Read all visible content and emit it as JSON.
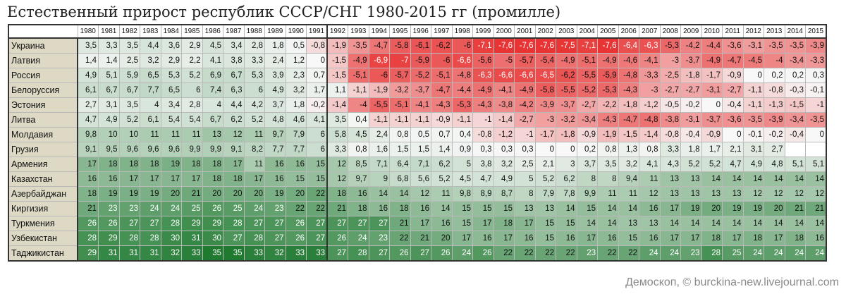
{
  "title": "Естественный прирост республик СССР/СНГ 1980-2015 гг (промилле)",
  "source": "Демоскоп, © burckina-new.livejournal.com",
  "colors": {
    "negative_max": "#e83434",
    "neutral": "#f8f8f8",
    "positive_max": "#1f7a30",
    "row_label_bg": "#ddd9c4"
  },
  "chart_data": {
    "type": "heatmap",
    "title": "Естественный прирост республик СССР/СНГ 1980-2015 гг (промилле)",
    "unit": "промилле",
    "x": [
      "1980",
      "1981",
      "1982",
      "1983",
      "1984",
      "1985",
      "1986",
      "1987",
      "1988",
      "1989",
      "1990",
      "1991",
      "1992",
      "1993",
      "1994",
      "1995",
      "1996",
      "1997",
      "1998",
      "1999",
      "2000",
      "2001",
      "2002",
      "2003",
      "2004",
      "2005",
      "2006",
      "2007",
      "2008",
      "2009",
      "2010",
      "2011",
      "2012",
      "2013",
      "2014",
      "2015"
    ],
    "rows": [
      {
        "name": "Украина",
        "values": [
          "3,5",
          "3,3",
          "3,5",
          "4,4",
          "3,6",
          "2,9",
          "4,5",
          "3,4",
          "2,8",
          "1,8",
          "0,5",
          "-0,8",
          "-1,9",
          "-3,5",
          "-4,7",
          "-5,8",
          "-6,1",
          "-6,2",
          "-6",
          "-7,1",
          "-7,6",
          "-7,6",
          "-7,6",
          "-7,5",
          "-7,1",
          "-7,6",
          "-6,4",
          "-6,3",
          "-5,3",
          "-4,2",
          "-4,4",
          "-3,6",
          "-3,1",
          "-3,5",
          "-3,5",
          "-3,9"
        ]
      },
      {
        "name": "Латвия",
        "values": [
          "1,4",
          "1,4",
          "2,5",
          "3,2",
          "2,9",
          "2,2",
          "4,1",
          "3,8",
          "3,3",
          "2,4",
          "1,2",
          "0",
          "-1,5",
          "-4,9",
          "-6,9",
          "-7",
          "-5,9",
          "-6",
          "-6,6",
          "-5,6",
          "-5",
          "-5,7",
          "-5,4",
          "-4,9",
          "-5,1",
          "-4,9",
          "-4,6",
          "-4,1",
          "-3",
          "-3,7",
          "-4,9",
          "-4,7",
          "-4,5",
          "-4",
          "-3,4",
          "-3,3"
        ]
      },
      {
        "name": "Россия",
        "values": [
          "4,9",
          "5,1",
          "5,9",
          "6,5",
          "5,3",
          "5,2",
          "6,9",
          "6,7",
          "5,3",
          "3,9",
          "2,3",
          "0,7",
          "-1,5",
          "-5,1",
          "-6",
          "-5,7",
          "-5,2",
          "-5,1",
          "-4,8",
          "-6,3",
          "-6,6",
          "-6,6",
          "-6,5",
          "-6,2",
          "-5,5",
          "-5,9",
          "-4,8",
          "-3,3",
          "-2,5",
          "-1,8",
          "-1,7",
          "-0,9",
          "0",
          "0,2",
          "0,2",
          "0,3"
        ]
      },
      {
        "name": "Белоруссия",
        "values": [
          "6,1",
          "6,7",
          "6,7",
          "7,7",
          "6,5",
          "6",
          "7,4",
          "6,3",
          "6",
          "4,9",
          "3,2",
          "1,7",
          "1,1",
          "-1,1",
          "-1,9",
          "-3,2",
          "-3,7",
          "-4,7",
          "-4,4",
          "-4,9",
          "-4,1",
          "-4,9",
          "-5,8",
          "-5,5",
          "-5,2",
          "-5,3",
          "-4,3",
          "-3",
          "-2,7",
          "-2,7",
          "-3,1",
          "-2,7",
          "-1,1",
          "-0,8",
          "-0,3",
          "-0,1"
        ]
      },
      {
        "name": "Эстония",
        "values": [
          "2,7",
          "3,1",
          "3,5",
          "4",
          "3,4",
          "2,8",
          "4",
          "4,4",
          "4,2",
          "3,7",
          "1,8",
          "-0,2",
          "-1,4",
          "-4",
          "-5,5",
          "-5,1",
          "-4,1",
          "-4,3",
          "-5,3",
          "-4,3",
          "-3,8",
          "-4,2",
          "-3,9",
          "-3,7",
          "-2,7",
          "-2,2",
          "-1,8",
          "-1,2",
          "-0,5",
          "-0,2",
          "0",
          "-0,4",
          "-1,1",
          "-1,3",
          "-1,5",
          "-1"
        ]
      },
      {
        "name": "Литва",
        "values": [
          "4,7",
          "4,9",
          "5,2",
          "6,1",
          "5,4",
          "5,4",
          "6,7",
          "6,2",
          "5,2",
          "4,8",
          "4,6",
          "4,1",
          "3,5",
          "0,4",
          "-1,1",
          "-1,1",
          "-1,1",
          "-0,9",
          "-1,1",
          "-1",
          "-1,4",
          "-2,7",
          "-3",
          "-3,2",
          "-3,4",
          "-4,3",
          "-4,7",
          "-4,8",
          "-3,8",
          "-3,1",
          "-3,7",
          "-3,6",
          "-3,5",
          "-3,9",
          "-3,4",
          "-3,5"
        ]
      },
      {
        "name": "Молдавия",
        "values": [
          "9,8",
          "10",
          "10",
          "11",
          "11",
          "11",
          "13",
          "12",
          "11",
          "9,7",
          "7,9",
          "6",
          "5,8",
          "4,5",
          "2,4",
          "0,8",
          "0,5",
          "0,7",
          "0,4",
          "-0,8",
          "-1,2",
          "-1",
          "-1,7",
          "-1,8",
          "-0,9",
          "-1,9",
          "-1,5",
          "-1,4",
          "-0,8",
          "-0,4",
          "-0,9",
          "0",
          "-0,1",
          "-0,2",
          "-0,4",
          "0"
        ]
      },
      {
        "name": "Грузия",
        "values": [
          "9,1",
          "9,5",
          "9,6",
          "9,6",
          "9,6",
          "9,9",
          "9,9",
          "9,1",
          "8,2",
          "7,7",
          "7,7",
          "6",
          "3,3",
          "0,8",
          "1,6",
          "1,5",
          "1,5",
          "1,4",
          "0,9",
          "0,3",
          "0,3",
          "0,3",
          "0",
          "0",
          "0,2",
          "0,8",
          "1,3",
          "0,8",
          "3,3",
          "1,8",
          "1,7",
          "2,1",
          "3,1",
          "2,7",
          "",
          ""
        ]
      },
      {
        "name": "Армения",
        "values": [
          "17",
          "18",
          "18",
          "18",
          "19",
          "18",
          "18",
          "17",
          "11",
          "16",
          "16",
          "15",
          "12",
          "8,5",
          "7,1",
          "6,4",
          "7,1",
          "6,2",
          "5",
          "3,8",
          "3,2",
          "2,5",
          "2,1",
          "3",
          "3,7",
          "3,5",
          "3,2",
          "4,1",
          "4,3",
          "5,2",
          "5,2",
          "4,7",
          "4,9",
          "4,8",
          "5,1",
          "5,1"
        ]
      },
      {
        "name": "Казахстан",
        "values": [
          "16",
          "16",
          "17",
          "17",
          "17",
          "17",
          "18",
          "18",
          "17",
          "16",
          "15",
          "15",
          "12",
          "9,7",
          "9",
          "6,8",
          "5,6",
          "5,2",
          "4,5",
          "4,7",
          "4,9",
          "5",
          "5,2",
          "6,2",
          "8",
          "8",
          "9,4",
          "11",
          "13",
          "13",
          "14",
          "14",
          "14",
          "14",
          "14",
          "14"
        ]
      },
      {
        "name": "Азербайджан",
        "values": [
          "18",
          "19",
          "19",
          "19",
          "20",
          "21",
          "20",
          "20",
          "20",
          "19",
          "20",
          "22",
          "18",
          "16",
          "14",
          "14",
          "12",
          "11",
          "9,8",
          "8,9",
          "8,7",
          "8",
          "7,9",
          "7,8",
          "9,9",
          "11",
          "11",
          "12",
          "13",
          "13",
          "13",
          "13",
          "12",
          "12",
          "12",
          "12"
        ]
      },
      {
        "name": "Киргизия",
        "values": [
          "21",
          "23",
          "23",
          "24",
          "24",
          "25",
          "26",
          "25",
          "24",
          "23",
          "22",
          "22",
          "21",
          "18",
          "16",
          "18",
          "16",
          "14",
          "15",
          "15",
          "15",
          "13",
          "13",
          "14",
          "15",
          "14",
          "14",
          "16",
          "17",
          "19",
          "20",
          "19",
          "19",
          "20",
          "21",
          "21"
        ]
      },
      {
        "name": "Туркмения",
        "values": [
          "26",
          "26",
          "27",
          "27",
          "28",
          "29",
          "29",
          "28",
          "27",
          "27",
          "26",
          "27",
          "27",
          "27",
          "27",
          "21",
          "17",
          "16",
          "15",
          "17",
          "18",
          "17",
          "15",
          "15",
          "14",
          "14",
          "13",
          "13",
          "14",
          "14",
          "14",
          "14",
          "14",
          "14",
          "14",
          "14"
        ]
      },
      {
        "name": "Узбекистан",
        "values": [
          "28",
          "29",
          "28",
          "28",
          "30",
          "31",
          "30",
          "27",
          "28",
          "27",
          "26",
          "27",
          "26",
          "24",
          "23",
          "22",
          "21",
          "20",
          "17",
          "16",
          "17",
          "16",
          "15",
          "16",
          "17",
          "16",
          "15",
          "16",
          "17",
          "17",
          "18",
          "17",
          "18",
          "17",
          "18",
          "16"
        ]
      },
      {
        "name": "Таджикистан",
        "values": [
          "29",
          "31",
          "31",
          "31",
          "32",
          "33",
          "35",
          "35",
          "33",
          "32",
          "33",
          "33",
          "27",
          "28",
          "27",
          "26",
          "27",
          "26",
          "24",
          "26",
          "22",
          "22",
          "22",
          "22",
          "23",
          "22",
          "22",
          "24",
          "24",
          "23",
          "28",
          "25",
          "24",
          "24",
          "24",
          "24"
        ]
      }
    ],
    "separator_after": "1991"
  }
}
